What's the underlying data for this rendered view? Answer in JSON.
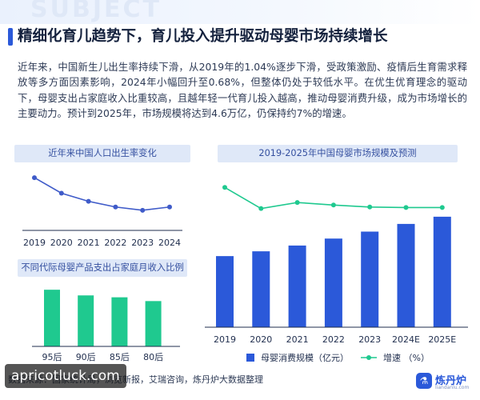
{
  "header": {
    "background_word": "SUBJECT",
    "title": "精细化育儿趋势下，育儿投入提升驱动母婴市场持续增长"
  },
  "body_text": "近年来，中国新生儿出生率持续下滑，从2019年的1.04%逐步下滑，受政策激励、疫情后生育需求释放等多方面因素影响，2024年小幅回升至0.68%，但整体仍处于较低水平。在优生优育理念的驱动下，母婴支出占家庭收入比重较高，且越年轻一代育儿投入越高，推动母婴消费升级，成为市场增长的主要动力。预计到2025年，市场规模将达到4.6万亿，仍保持约7%的增速。",
  "colors": {
    "accent_blue": "#2b59d9",
    "line_blue": "#3f5bc9",
    "green": "#1fc98f",
    "panel_title_bg": "#dfe8f8"
  },
  "footer": {
    "source": "数据来源：国家统计局，浏览新报，艾瑞咨询，炼丹炉大数据整理",
    "watermark": "apricotluck.com",
    "logo_name": "炼丹炉",
    "logo_url": "liandanlu.com",
    "logo_icon": "flask-logo-icon"
  },
  "chart_data": [
    {
      "type": "line",
      "title": "近年来中国人口出生率变化",
      "categories": [
        "2019",
        "2020",
        "2021",
        "2022",
        "2023",
        "2024"
      ],
      "series": [
        {
          "values": [
            1.04,
            0.85,
            0.75,
            0.68,
            0.64,
            0.68
          ]
        }
      ],
      "unit": "%",
      "ylim": [
        0.55,
        1.1
      ],
      "grid": false,
      "color": "#3f5bc9"
    },
    {
      "type": "bar",
      "title": "2019-2025年中国母婴市场规模及预测",
      "categories": [
        "2019",
        "2020",
        "2021",
        "2022",
        "2023",
        "2024E",
        "2025E"
      ],
      "series": [
        {
          "name": "母婴消费规模（亿元）",
          "type": "bar",
          "values": [
            29600,
            31600,
            34000,
            36900,
            39800,
            43000,
            46000
          ],
          "color": "#2b59d9"
        },
        {
          "name": "增速 （%）",
          "type": "line",
          "values": [
            11.0,
            6.8,
            8.0,
            7.5,
            7.1,
            7.0,
            7.0
          ],
          "color": "#1fc98f"
        }
      ],
      "ylim_bar": [
        0,
        50000
      ],
      "ylim_line": [
        5,
        12
      ],
      "legend": "bottom",
      "grid": false
    },
    {
      "type": "bar",
      "title": "不同代际母婴产品支出占家庭月收入比例",
      "categories": [
        "95后",
        "90后",
        "85后",
        "80后"
      ],
      "values": [
        30,
        27,
        26,
        24
      ],
      "unit": "%",
      "ylim": [
        0,
        36
      ],
      "color": "#1fc98f"
    }
  ]
}
